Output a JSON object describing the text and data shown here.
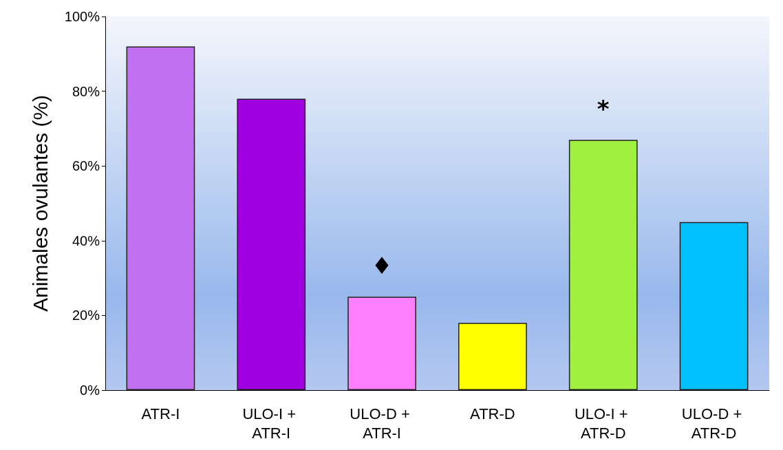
{
  "chart_data": {
    "type": "bar",
    "ylabel": "Animales ovulantes (%)",
    "categories": [
      "ATR-I",
      "ULO-I + ATR-I",
      "ULO-D + ATR-I",
      "ATR-D",
      "ULO-I + ATR-D",
      "ULO-D + ATR-D"
    ],
    "values": [
      92,
      78,
      25,
      18,
      67,
      45
    ],
    "colors": [
      "#c070f0",
      "#a000e0",
      "#ff80ff",
      "#ffff00",
      "#a0f040",
      "#00c0ff"
    ],
    "ylim": [
      0,
      100
    ],
    "yticks": [
      {
        "value": 0,
        "label": "0%"
      },
      {
        "value": 20,
        "label": "20%"
      },
      {
        "value": 40,
        "label": "40%"
      },
      {
        "value": 60,
        "label": "60%"
      },
      {
        "value": 80,
        "label": "80%"
      },
      {
        "value": 100,
        "label": "100%"
      }
    ],
    "grid": false,
    "annotations": [
      {
        "text": "♦",
        "x": "ULO-D + ATR-I",
        "y": 25
      },
      {
        "text": "*",
        "x": "ULO-I + ATR-D",
        "y": 67
      }
    ]
  }
}
